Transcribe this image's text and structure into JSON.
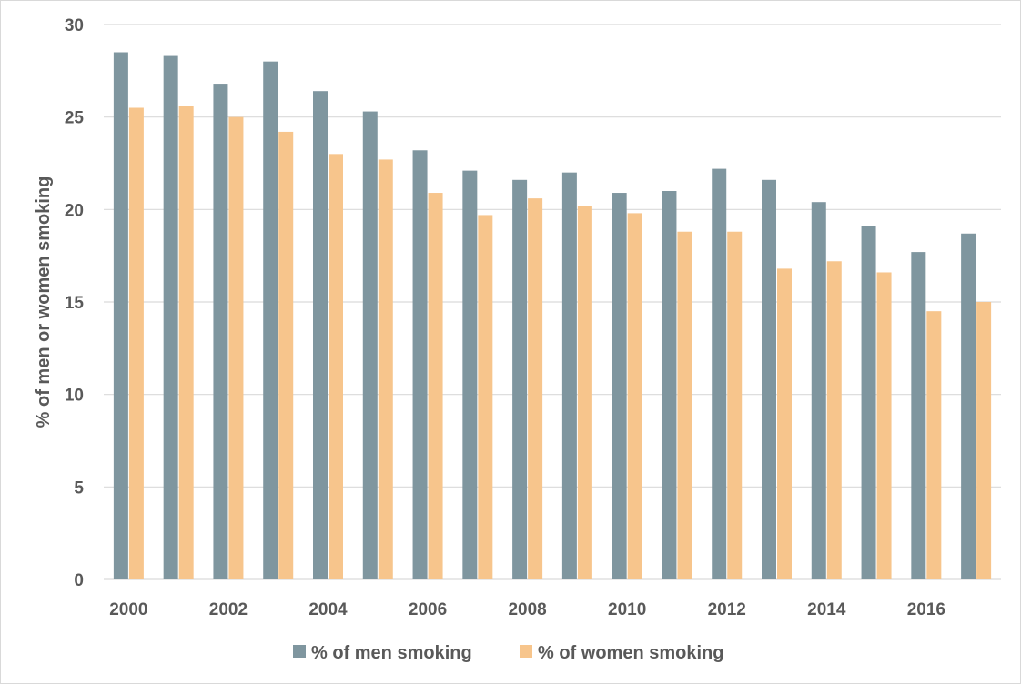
{
  "colors": {
    "men": "#7f969f",
    "women": "#f7c58c",
    "grid": "#d9d9d9",
    "text": "#595959"
  },
  "chart_data": {
    "type": "bar",
    "title": "",
    "xlabel": "",
    "ylabel": "% of men or women smoking",
    "ylim": [
      0,
      30
    ],
    "yticks": [
      0,
      5,
      10,
      15,
      20,
      25,
      30
    ],
    "grid": true,
    "legend_position": "bottom",
    "categories": [
      "2000",
      "2001",
      "2002",
      "2003",
      "2004",
      "2005",
      "2006",
      "2007",
      "2008",
      "2009",
      "2010",
      "2011",
      "2012",
      "2013",
      "2014",
      "2015",
      "2016",
      "2017"
    ],
    "xtick_labels": [
      "2000",
      "",
      "2002",
      "",
      "2004",
      "",
      "2006",
      "",
      "2008",
      "",
      "2010",
      "",
      "2012",
      "",
      "2014",
      "",
      "2016",
      ""
    ],
    "series": [
      {
        "name": "% of men smoking",
        "color_key": "men",
        "values": [
          28.5,
          28.3,
          26.8,
          28.0,
          26.4,
          25.3,
          23.2,
          22.1,
          21.6,
          22.0,
          20.9,
          21.0,
          22.2,
          21.6,
          20.4,
          19.1,
          17.7,
          18.7
        ]
      },
      {
        "name": "% of women smoking",
        "color_key": "women",
        "values": [
          25.5,
          25.6,
          25.0,
          24.2,
          23.0,
          22.7,
          20.9,
          19.7,
          20.6,
          20.2,
          19.8,
          18.8,
          18.8,
          16.8,
          17.2,
          16.6,
          14.5,
          15.0
        ]
      }
    ]
  }
}
